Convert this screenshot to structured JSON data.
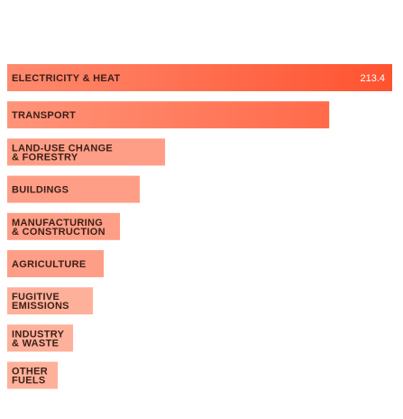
{
  "chart_data": {
    "type": "bar",
    "orientation": "horizontal",
    "title": "",
    "xlabel": "",
    "ylabel": "",
    "grid": false,
    "legend": "none",
    "categories": [
      [
        "ELECTRICITY & HEAT"
      ],
      [
        "TRANSPORT"
      ],
      [
        "LAND-USE CHANGE",
        "& FORESTRY"
      ],
      [
        "BUILDINGS"
      ],
      [
        "MANUFACTURING",
        "& CONSTRUCTION"
      ],
      [
        "AGRICULTURE"
      ],
      [
        "FUGITIVE",
        "EMISSIONS"
      ],
      [
        "INDUSTRY",
        "& WASTE"
      ],
      [
        "OTHER",
        "FUELS"
      ]
    ],
    "values": [
      213.4,
      178.5,
      87.5,
      73.5,
      62.5,
      53.5,
      47.5,
      36.5,
      28.0
    ],
    "value_labels": [
      "213.4",
      "",
      "",
      "",
      "",
      "",
      "",
      "",
      ""
    ],
    "xlim": [
      0,
      213.4
    ]
  },
  "colors": {
    "bar_strong_start": "#ff8a6e",
    "bar_strong_end": "#ff5330",
    "bar_light": "#ff9e86",
    "bar_lightest": "#ffb09a",
    "label_text": "#3a1f18",
    "value_text": "#ffffff"
  }
}
